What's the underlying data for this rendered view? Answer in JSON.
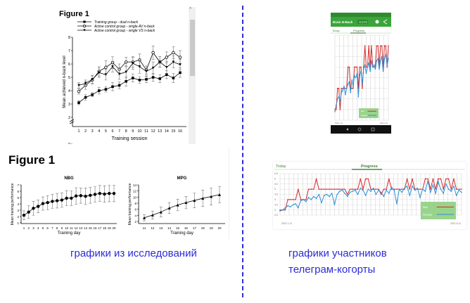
{
  "top_panel": {
    "figure_label": "Figure 1"
  },
  "bottom_panel": {
    "figure_label": "Figure 1"
  },
  "captions": {
    "left": "графики из исследований",
    "right_line1": "графики участников",
    "right_line2": "телеграм-когорты"
  },
  "phone": {
    "app_title": "Brain N-Back",
    "badge": "43 DATE",
    "tab_today": "Today",
    "tab_progress": "Progress",
    "legend_max": "Max",
    "legend_average": "Average",
    "date_start": "2021.1.11",
    "date_end": "2021.6.11"
  },
  "wide": {
    "tab_today": "Today",
    "tab_progress": "Progress",
    "legend_max": "Max",
    "legend_average": "Average",
    "date_start": "2021.1.11",
    "date_end": "2021.6.11"
  },
  "colors": {
    "caption": "#2b2bd9",
    "max": "#d42a2a",
    "average": "#2f8fd6",
    "green": "#3a9a3a"
  },
  "chart_data": [
    {
      "id": "fig1_top",
      "type": "line",
      "xlabel": "Training session",
      "ylabel": "Mean achieved n-back level",
      "x": [
        1,
        2,
        3,
        4,
        5,
        6,
        7,
        8,
        9,
        10,
        11,
        12,
        13,
        14,
        15,
        16
      ],
      "ylim": [
        0,
        8
      ],
      "yticks": [
        0,
        2,
        3,
        4,
        5,
        6,
        7,
        8
      ],
      "legend_position": "top-left",
      "series": [
        {
          "name": "Training group - dual n-back",
          "marker": "filled-square",
          "values": [
            3.1,
            3.5,
            3.7,
            4.0,
            4.1,
            4.3,
            4.4,
            4.7,
            4.95,
            4.8,
            4.85,
            5.0,
            4.9,
            5.2,
            4.95,
            5.35
          ],
          "error": [
            0.15,
            0.2,
            0.15,
            0.25,
            0.2,
            0.3,
            0.25,
            0.35,
            0.3,
            0.25,
            0.25,
            0.3,
            0.3,
            0.3,
            0.35,
            0.35
          ]
        },
        {
          "name": "Active control group - single AV n-back",
          "marker": "open-circle",
          "values": [
            3.95,
            4.4,
            4.8,
            5.45,
            5.75,
            6.1,
            5.6,
            6.15,
            6.15,
            6.3,
            5.55,
            6.85,
            6.15,
            6.5,
            6.85,
            6.5
          ],
          "error": [
            0.2,
            0.3,
            0.3,
            0.35,
            0.5,
            0.45,
            0.4,
            0.35,
            0.4,
            0.45,
            0.3,
            0.5,
            0.4,
            0.4,
            0.45,
            0.5
          ]
        },
        {
          "name": "Active control group - single VS n-back",
          "marker": "filled-triangle-down",
          "values": [
            4.4,
            4.55,
            4.85,
            5.35,
            5.2,
            5.8,
            5.25,
            5.4,
            6.05,
            5.8,
            5.45,
            5.7,
            6.15,
            5.75,
            6.15,
            5.95
          ],
          "error": [
            0.2,
            0.25,
            0.3,
            0.35,
            0.4,
            0.4,
            0.4,
            0.45,
            0.45,
            0.5,
            0.4,
            0.45,
            0.4,
            0.45,
            0.45,
            0.4
          ]
        }
      ]
    },
    {
      "id": "nbg",
      "type": "line",
      "title": "NBG",
      "xlabel": "Training day",
      "ylabel": "Mean training performance",
      "x": [
        1,
        2,
        3,
        4,
        5,
        6,
        7,
        8,
        9,
        10,
        11,
        12,
        13,
        14,
        15,
        16,
        17,
        18,
        19,
        20
      ],
      "ylim": [
        1,
        7
      ],
      "yticks": [
        1,
        2,
        3,
        4,
        5,
        6,
        7
      ],
      "series": [
        {
          "name": "NBG",
          "marker": "filled-circle",
          "values": [
            2.2,
            2.7,
            3.3,
            3.6,
            4.05,
            4.2,
            4.4,
            4.5,
            4.6,
            4.9,
            4.9,
            5.25,
            5.3,
            5.2,
            5.35,
            5.5,
            5.65,
            5.55,
            5.65,
            5.65
          ],
          "error": [
            0.7,
            1.0,
            1.1,
            1.0,
            1.05,
            1.1,
            1.1,
            1.15,
            1.15,
            1.2,
            1.15,
            1.3,
            1.2,
            1.3,
            1.25,
            1.2,
            1.25,
            1.3,
            1.3,
            1.3
          ]
        }
      ]
    },
    {
      "id": "mpg",
      "type": "line",
      "title": "MPG",
      "xlabel": "Training day",
      "ylabel": "Mean training performance",
      "x": [
        11,
        12,
        13,
        14,
        15,
        16,
        17,
        18,
        19,
        20
      ],
      "ylim": [
        2,
        14
      ],
      "yticks": [
        2,
        4,
        6,
        8,
        10,
        12,
        14
      ],
      "series": [
        {
          "name": "MPG",
          "marker": "filled-triangle",
          "values": [
            3.2,
            4.1,
            5.1,
            6.4,
            7.4,
            8.2,
            8.9,
            9.6,
            10.2,
            10.8
          ],
          "error": [
            1.0,
            1.3,
            1.6,
            1.8,
            1.9,
            2.0,
            2.4,
            2.7,
            2.8,
            2.7
          ]
        }
      ]
    },
    {
      "id": "phone_progress",
      "type": "line",
      "ylim": [
        2.5,
        6.5
      ],
      "series": [
        {
          "name": "Max",
          "values": [
            3,
            3,
            4,
            4,
            3,
            4,
            4,
            4,
            4,
            4,
            5,
            5,
            4,
            4,
            4,
            5,
            5,
            5,
            4,
            5,
            5,
            4,
            5,
            6,
            5,
            5,
            6,
            5,
            6,
            5,
            5,
            5,
            6,
            6,
            5,
            6,
            6,
            5,
            6,
            6,
            5,
            6
          ]
        },
        {
          "name": "Average",
          "values": [
            2.9,
            3.2,
            3.5,
            3.6,
            3.4,
            3.8,
            3.9,
            4.1,
            3.7,
            4.0,
            4.2,
            4.3,
            3.8,
            4.4,
            4.1,
            4.6,
            4.5,
            4.7,
            3.6,
            4.6,
            4.8,
            4.2,
            4.9,
            5.1,
            4.7,
            5.0,
            5.2,
            4.8,
            5.3,
            5.0,
            5.1,
            4.9,
            5.3,
            5.4,
            4.9,
            5.3,
            5.5,
            4.8,
            5.4,
            5.6,
            5.1,
            5.4
          ]
        }
      ]
    },
    {
      "id": "wide_progress",
      "type": "line",
      "ylim": [
        2.5,
        6.5
      ],
      "yticks": [
        2.5,
        3,
        3.5,
        4,
        4.5,
        5,
        5.5,
        6,
        6.5
      ],
      "series": [
        {
          "name": "Max",
          "values": [
            3,
            3,
            3,
            4,
            4,
            4,
            4,
            5,
            4,
            4,
            4,
            5,
            5,
            5,
            6,
            5,
            5,
            5,
            5,
            5,
            5,
            5,
            5,
            5,
            5,
            5,
            4.5,
            5,
            5,
            5,
            5,
            6,
            5,
            6,
            6,
            5,
            5,
            5,
            5,
            4.5,
            5,
            5,
            6,
            5,
            5,
            5,
            5,
            5,
            5,
            6,
            5,
            6,
            5,
            5,
            5,
            5,
            6,
            6,
            5,
            6,
            5,
            6,
            6,
            5,
            6,
            6,
            5,
            6,
            5,
            5,
            5
          ]
        },
        {
          "name": "Average",
          "values": [
            2.9,
            3.0,
            3.2,
            3.4,
            3.3,
            3.5,
            3.6,
            3.2,
            3.9,
            4.0,
            3.8,
            4.2,
            4.0,
            4.3,
            4.1,
            4.5,
            3.7,
            4.4,
            4.5,
            4.3,
            4.6,
            3.5,
            4.5,
            4.8,
            4.9,
            4.6,
            4.3,
            4.7,
            4.8,
            4.9,
            4.5,
            5.1,
            4.9,
            4.4,
            5.0,
            4.8,
            5.1,
            4.5,
            4.9,
            4.7,
            4.3,
            4.9,
            4.6,
            5.2,
            4.9,
            3.6,
            5.0,
            4.7,
            5.1,
            5.3,
            4.4,
            5.3,
            4.9,
            5.1,
            4.2,
            5.0,
            4.8,
            5.8,
            4.7,
            5.4,
            4.6,
            5.7,
            5.0,
            4.6,
            5.5,
            5.0,
            4.8,
            5.3,
            4.4,
            4.9,
            4.7
          ]
        }
      ]
    }
  ]
}
